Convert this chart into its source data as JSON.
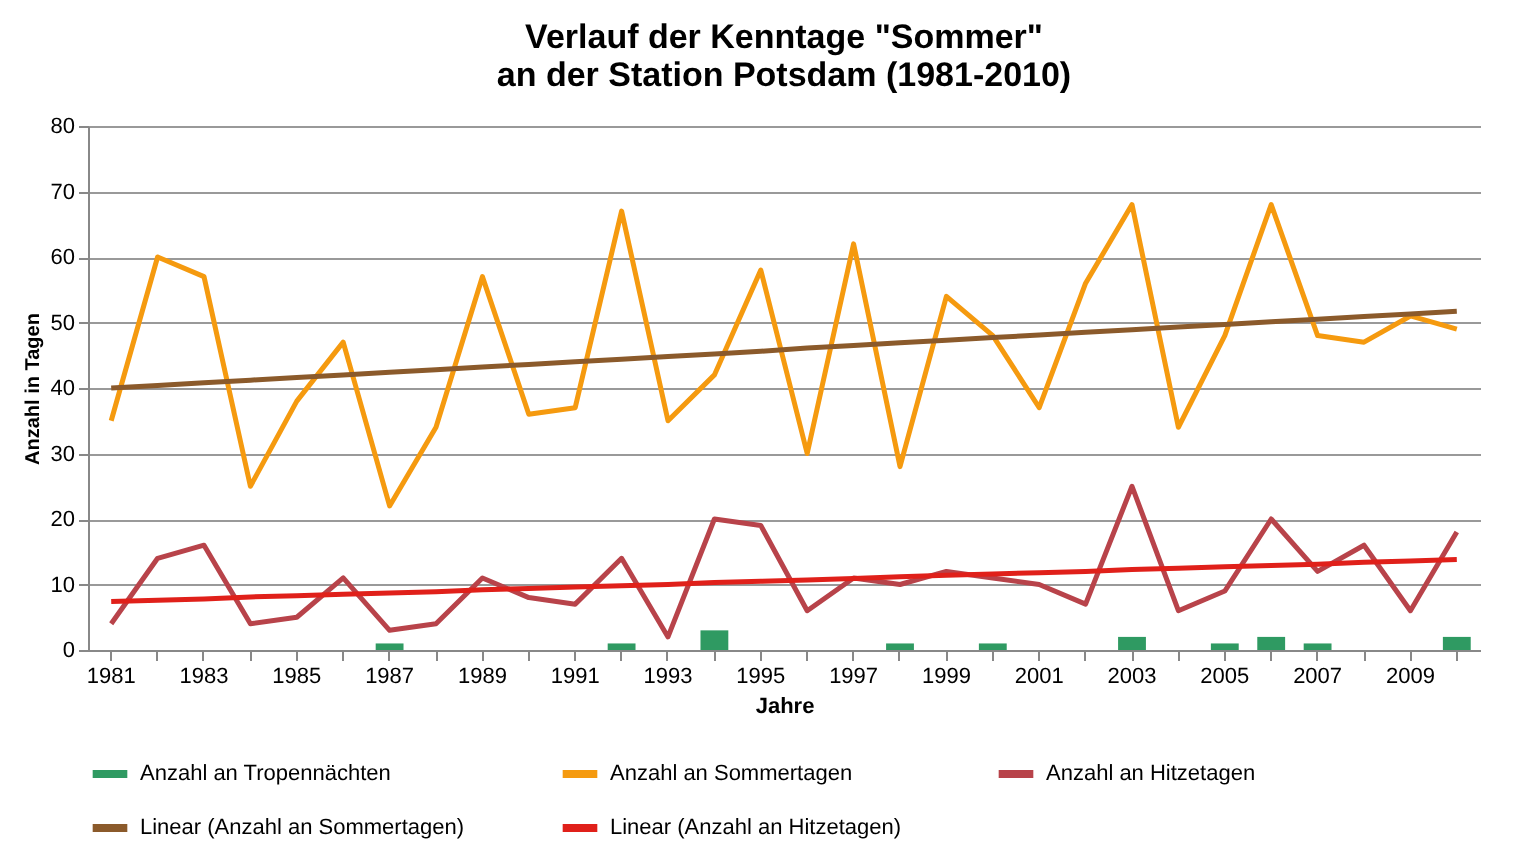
{
  "chart_data": {
    "type": "line",
    "title": "Verlauf der Kenntage \"Sommer\"\nan der Station Potsdam (1981-2010)",
    "xlabel": "Jahre",
    "ylabel": "Anzahl in Tagen",
    "categories": [
      "1981",
      null,
      "1983",
      null,
      "1985",
      null,
      "1987",
      null,
      "1989",
      null,
      "1991",
      null,
      "1993",
      null,
      "1995",
      null,
      "1997",
      null,
      "1999",
      null,
      "2001",
      null,
      "2003",
      null,
      "2005",
      null,
      "2007",
      null,
      "2009",
      null
    ],
    "series": [
      {
        "name": "Anzahl an Tropennächten",
        "type": "bar",
        "color": "#2f9a62",
        "values": [
          0,
          0,
          0,
          0,
          0,
          0,
          1,
          0,
          0,
          0,
          0,
          1,
          0,
          3,
          0,
          0,
          0,
          1,
          0,
          1,
          0,
          0,
          2,
          0,
          1,
          2,
          1,
          0,
          0,
          2
        ]
      },
      {
        "name": "Anzahl an Sommertagen",
        "color": "#f59a0f",
        "values": [
          35,
          60,
          57,
          25,
          38,
          47,
          22,
          34,
          57,
          36,
          37,
          67,
          35,
          42,
          58,
          30,
          62,
          28,
          54,
          48,
          37,
          56,
          68,
          34,
          48,
          68,
          48,
          47,
          51,
          49
        ]
      },
      {
        "name": "Anzahl an Hitzetagen",
        "color": "#b8434a",
        "values": [
          4,
          14,
          16,
          4,
          5,
          11,
          3,
          4,
          11,
          8,
          7,
          14,
          2,
          20,
          19,
          6,
          11,
          10,
          12,
          11,
          10,
          7,
          25,
          6,
          9,
          20,
          12,
          16,
          6,
          18
        ]
      },
      {
        "name": "Linear (Anzahl an Sommertagen)",
        "color": "#8b5a2b",
        "values": [
          40.0,
          40.4,
          40.8,
          41.2,
          41.6,
          42.0,
          42.4,
          42.8,
          43.2,
          43.6,
          44.0,
          44.4,
          44.8,
          45.2,
          45.6,
          46.1,
          46.5,
          46.9,
          47.3,
          47.7,
          48.1,
          48.5,
          48.9,
          49.3,
          49.7,
          50.1,
          50.5,
          50.9,
          51.3,
          51.7
        ]
      },
      {
        "name": "Linear (Anzahl an Hitzetagen)",
        "color": "#e0201a",
        "values": [
          7.4,
          7.6,
          7.8,
          8.1,
          8.3,
          8.5,
          8.7,
          8.9,
          9.2,
          9.4,
          9.6,
          9.8,
          10.0,
          10.3,
          10.5,
          10.7,
          10.9,
          11.2,
          11.4,
          11.6,
          11.8,
          12.0,
          12.3,
          12.5,
          12.7,
          12.9,
          13.1,
          13.4,
          13.6,
          13.8
        ]
      }
    ],
    "ylim": [
      0,
      80
    ],
    "yticks": [
      0,
      10,
      20,
      30,
      40,
      50,
      60,
      70,
      80
    ],
    "grid": "y",
    "legend": "bottom",
    "line_style": "solid"
  }
}
